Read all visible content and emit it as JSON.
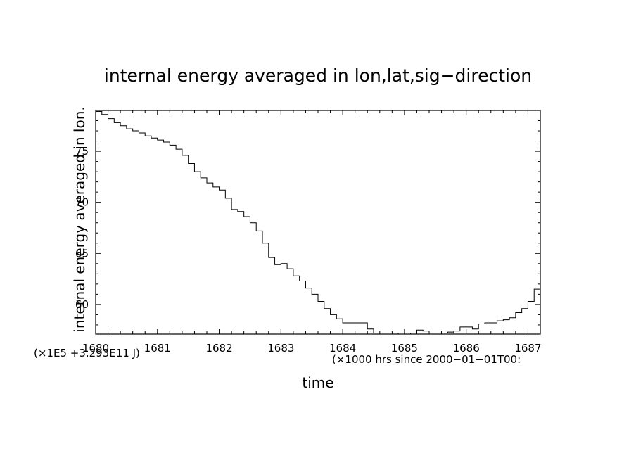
{
  "chart_data": {
    "type": "line",
    "title": "internal energy averaged in lon,lat,sig−direction",
    "xlabel": "time",
    "ylabel": "internal energy averaged in lon.",
    "x_unit_note": "(×1000 hrs  since 2000−01−01T00:",
    "y_unit_note": "(×1E5 +3.293E11 J)",
    "xlim": [
      1680,
      1687.2
    ],
    "ylim": [
      57.1,
      79.0
    ],
    "x_ticks": [
      1680,
      1681,
      1682,
      1683,
      1684,
      1685,
      1686,
      1687
    ],
    "x_tick_labels": [
      "1680",
      "1681",
      "1682",
      "1683",
      "1684",
      "1685",
      "1686",
      "1687"
    ],
    "y_ticks": [
      60,
      65,
      70,
      75
    ],
    "y_tick_labels": [
      "60",
      "65",
      "70",
      "75"
    ],
    "step": true,
    "grid": false,
    "series": [
      {
        "x": [
          1680.0,
          1680.1,
          1680.2,
          1680.3,
          1680.4,
          1680.5,
          1680.6,
          1680.7,
          1680.8,
          1680.9,
          1681.0,
          1681.1,
          1681.2,
          1681.3,
          1681.4,
          1681.5,
          1681.6,
          1681.7,
          1681.8,
          1681.9,
          1682.0,
          1682.1,
          1682.2,
          1682.3,
          1682.4,
          1682.5,
          1682.6,
          1682.7,
          1682.8,
          1682.9,
          1683.0,
          1683.1,
          1683.2,
          1683.3,
          1683.4,
          1683.5,
          1683.6,
          1683.7,
          1683.8,
          1683.9,
          1684.0,
          1684.1,
          1684.2,
          1684.3,
          1684.4,
          1684.5,
          1684.6,
          1684.7,
          1684.8,
          1684.9,
          1685.0,
          1685.1,
          1685.2,
          1685.3,
          1685.4,
          1685.5,
          1685.6,
          1685.7,
          1685.8,
          1685.9,
          1686.0,
          1686.1,
          1686.2,
          1686.3,
          1686.4,
          1686.5,
          1686.6,
          1686.7,
          1686.8,
          1686.9,
          1687.0,
          1687.1,
          1687.2
        ],
        "y": [
          78.9,
          78.6,
          78.2,
          77.8,
          77.5,
          77.2,
          77.0,
          76.8,
          76.5,
          76.3,
          76.1,
          75.9,
          75.6,
          75.2,
          74.6,
          73.8,
          73.0,
          72.4,
          71.9,
          71.5,
          71.2,
          70.4,
          69.3,
          69.1,
          68.6,
          68.0,
          67.2,
          66.0,
          64.6,
          63.9,
          64.0,
          63.5,
          62.8,
          62.3,
          61.6,
          61.0,
          60.3,
          59.6,
          59.0,
          58.6,
          58.2,
          58.2,
          58.2,
          58.2,
          57.6,
          57.2,
          57.2,
          57.2,
          57.2,
          57.1,
          57.1,
          57.2,
          57.5,
          57.4,
          57.2,
          57.2,
          57.2,
          57.3,
          57.4,
          57.8,
          57.8,
          57.6,
          58.1,
          58.2,
          58.2,
          58.4,
          58.5,
          58.7,
          59.2,
          59.6,
          60.3,
          61.5,
          62.0
        ]
      }
    ]
  }
}
